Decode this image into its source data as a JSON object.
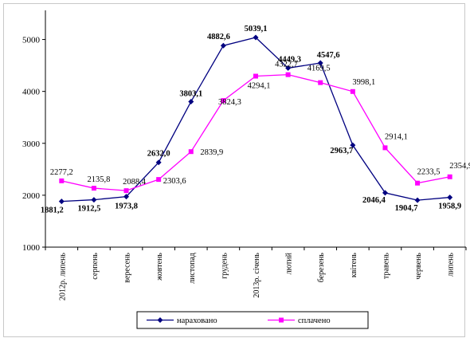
{
  "chart_data": {
    "type": "line",
    "categories": [
      "2012р. липень",
      "серпень",
      "вересень",
      "жовтень",
      "листопад",
      "грудень",
      "2013р. січень",
      "лютий",
      "березень",
      "квітень",
      "травень",
      "червень",
      "липень"
    ],
    "series": [
      {
        "name": "нараховано",
        "values": [
          1881.2,
          1912.5,
          1973.8,
          2632.0,
          3803.1,
          4882.6,
          5039.1,
          4449.3,
          4547.6,
          2963.7,
          2046.4,
          1904.7,
          1958.9
        ],
        "labels": [
          "1881,2",
          "1912,5",
          "1973,8",
          "2632,0",
          "3803,1",
          "4882,6",
          "5039,1",
          "4449,3",
          "4547,6",
          "2963,7",
          "2046,4",
          "1904,7",
          "1958,9"
        ],
        "color": "#000080",
        "marker": "diamond"
      },
      {
        "name": "сплачено",
        "values": [
          2277.2,
          2135.8,
          2088.4,
          2303.6,
          2839.9,
          3824.3,
          4294.1,
          4322.7,
          4169.5,
          3998.1,
          2914.1,
          2233.5,
          2354.9
        ],
        "labels": [
          "2277,2",
          "2135,8",
          "2088,4",
          "2303,6",
          "2839,9",
          "3824,3",
          "4294,1",
          "4322,7",
          "4169,5",
          "3998,1",
          "2914,1",
          "2233,5",
          "2354,9"
        ],
        "color": "#ff00ff",
        "marker": "square"
      }
    ],
    "y_ticks": [
      "1000",
      "2000",
      "3000",
      "4000",
      "5000"
    ],
    "ylim": [
      1000,
      5500
    ],
    "grid": false,
    "legend_position": "bottom"
  }
}
